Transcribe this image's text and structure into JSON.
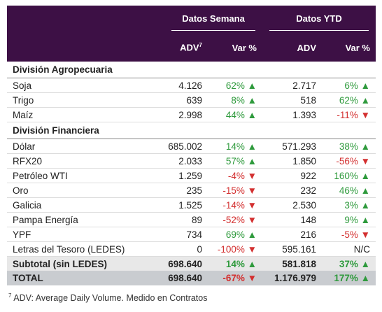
{
  "header": {
    "groups": [
      "Datos Semana",
      "Datos YTD"
    ],
    "columns": [
      "ADV",
      "Var %",
      "ADV",
      "Var %"
    ],
    "footnote_marker": "7"
  },
  "sections": [
    {
      "title": "División Agropecuaria",
      "rows": [
        [
          "Soja",
          "4.126",
          "62% ▲",
          "2.717",
          "6% ▲"
        ],
        [
          "Trigo",
          "639",
          "8% ▲",
          "518",
          "62% ▲"
        ],
        [
          "Maíz",
          "2.998",
          "44% ▲",
          "1.393",
          "-11% ▼"
        ]
      ]
    },
    {
      "title": "División Financiera",
      "rows": [
        [
          "Dólar",
          "685.002",
          "14% ▲",
          "571.293",
          "38% ▲"
        ],
        [
          "RFX20",
          "2.033",
          "57% ▲",
          "1.850",
          "-56% ▼"
        ],
        [
          "Petróleo WTI",
          "1.259",
          "-4% ▼",
          "922",
          "160% ▲"
        ],
        [
          "Oro",
          "235",
          "-15% ▼",
          "232",
          "46% ▲"
        ],
        [
          "Galicia",
          "1.525",
          "-14% ▼",
          "2.530",
          "3% ▲"
        ],
        [
          "Pampa Energía",
          "89",
          "-52% ▼",
          "148",
          "9% ▲"
        ],
        [
          "YPF",
          "734",
          "69% ▲",
          "216",
          "-5% ▼"
        ],
        [
          "Letras del Tesoro (LEDES)",
          "0",
          "-100% ▼",
          "595.161",
          "N/C"
        ]
      ]
    }
  ],
  "subtotal": [
    "Subtotal (sin LEDES)",
    "698.640",
    "14% ▲",
    "581.818",
    "37% ▲"
  ],
  "total": [
    "TOTAL",
    "698.640",
    "-67% ▼",
    "1.176.979",
    "177% ▲"
  ],
  "footnote": {
    "marker": "7",
    "text": "ADV: Average Daily Volume. Medido en Contratos"
  }
}
